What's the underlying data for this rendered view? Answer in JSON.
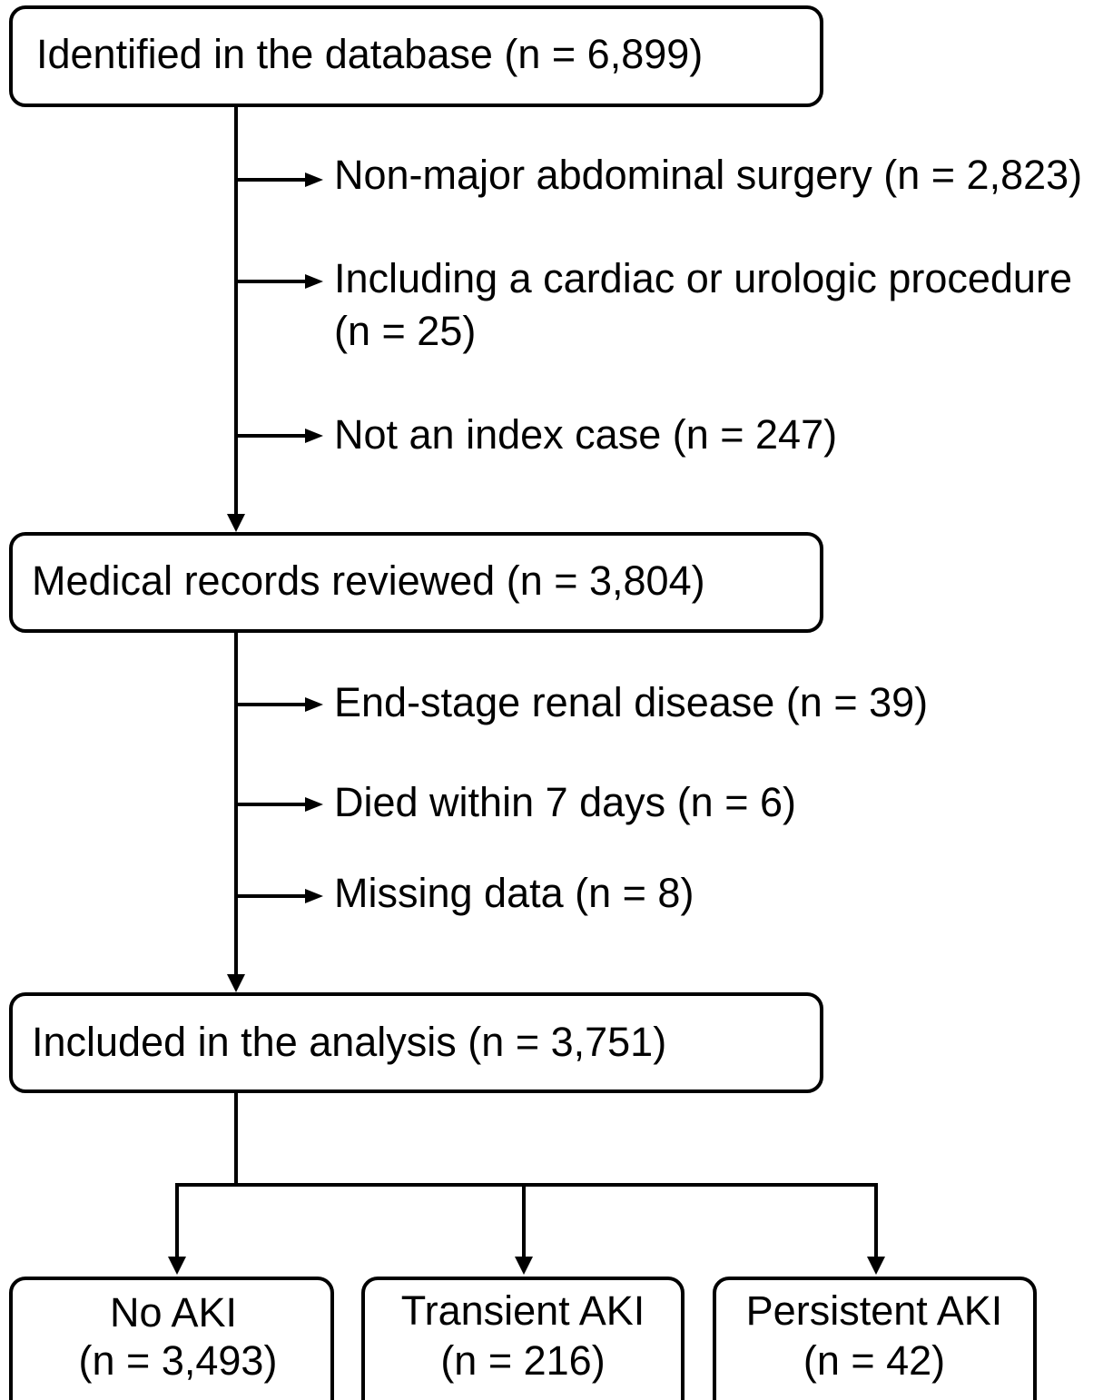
{
  "boxes": [
    {
      "label": "Identified in the database (n = 6,899)"
    },
    {
      "label": "Medical records reviewed (n = 3,804)"
    },
    {
      "label": "Included in the analysis (n = 3,751)"
    }
  ],
  "exclusions": [
    {
      "lines": [
        "Non-major abdominal surgery (n = 2,823)"
      ]
    },
    {
      "lines": [
        "Including a cardiac or urologic procedure",
        "(n = 25)"
      ]
    },
    {
      "lines": [
        "Not an index case (n = 247)"
      ]
    },
    {
      "lines": [
        "End-stage renal disease (n = 39)"
      ]
    },
    {
      "lines": [
        "Died within 7 days (n = 6)"
      ]
    },
    {
      "lines": [
        "Missing data (n = 8)"
      ]
    }
  ],
  "outcomes": [
    {
      "lines": [
        "No AKI",
        "(n = 3,493)"
      ]
    },
    {
      "lines": [
        "Transient AKI",
        "(n = 216)"
      ]
    },
    {
      "lines": [
        "Persistent AKI",
        "(n = 42)"
      ]
    }
  ]
}
